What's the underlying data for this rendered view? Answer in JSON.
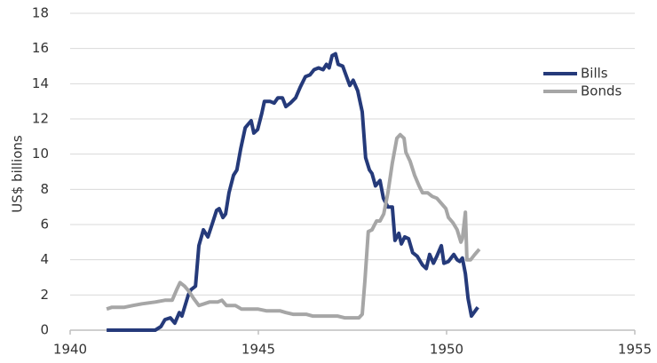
{
  "chart_data": {
    "type": "line",
    "ylabel": "US$ billions",
    "xlim": [
      1940,
      1955
    ],
    "xticks": [
      1940,
      1945,
      1950,
      1955
    ],
    "ylim": [
      0,
      18
    ],
    "yticks": [
      0,
      2,
      4,
      6,
      8,
      10,
      12,
      14,
      16,
      18
    ],
    "grid": true,
    "legend": "right",
    "series": [
      {
        "name": "Bills",
        "color": "#253a7a",
        "x": [
          1940.97,
          1942.26,
          1942.41,
          1942.52,
          1942.66,
          1942.78,
          1942.9,
          1942.97,
          1943.14,
          1943.21,
          1943.33,
          1943.42,
          1943.54,
          1943.66,
          1943.77,
          1943.89,
          1943.96,
          1944.06,
          1944.13,
          1944.22,
          1944.34,
          1944.43,
          1944.53,
          1944.65,
          1944.81,
          1944.88,
          1944.98,
          1945.09,
          1945.16,
          1945.31,
          1945.42,
          1945.52,
          1945.64,
          1945.73,
          1945.85,
          1945.99,
          1946.11,
          1946.25,
          1946.37,
          1946.48,
          1946.6,
          1946.72,
          1946.81,
          1946.88,
          1946.96,
          1947.05,
          1947.12,
          1947.24,
          1947.31,
          1947.43,
          1947.52,
          1947.64,
          1947.76,
          1947.85,
          1947.95,
          1948.02,
          1948.11,
          1948.23,
          1948.32,
          1948.44,
          1948.56,
          1948.63,
          1948.73,
          1948.8,
          1948.89,
          1948.99,
          1949.1,
          1949.22,
          1949.36,
          1949.46,
          1949.55,
          1949.65,
          1949.74,
          1949.86,
          1949.93,
          1950.05,
          1950.19,
          1950.28,
          1950.35,
          1950.42,
          1950.5,
          1950.57,
          1950.66,
          1950.83
        ],
        "values": [
          0,
          0,
          0.2,
          0.6,
          0.7,
          0.4,
          1.0,
          0.8,
          2.0,
          2.3,
          2.5,
          4.8,
          5.7,
          5.3,
          6.0,
          6.8,
          6.9,
          6.4,
          6.6,
          7.8,
          8.8,
          9.1,
          10.3,
          11.5,
          11.9,
          11.2,
          11.4,
          12.3,
          13.0,
          13.0,
          12.9,
          13.2,
          13.2,
          12.7,
          12.9,
          13.2,
          13.8,
          14.4,
          14.5,
          14.8,
          14.9,
          14.8,
          15.1,
          14.9,
          15.6,
          15.7,
          15.1,
          15.0,
          14.6,
          13.9,
          14.2,
          13.6,
          12.4,
          9.8,
          9.1,
          8.9,
          8.2,
          8.5,
          7.5,
          7.0,
          7.0,
          5.1,
          5.5,
          4.9,
          5.3,
          5.2,
          4.4,
          4.2,
          3.7,
          3.5,
          4.3,
          3.8,
          4.2,
          4.8,
          3.8,
          3.9,
          4.3,
          4.0,
          3.9,
          4.1,
          3.2,
          1.8,
          0.8,
          1.3
        ]
      },
      {
        "name": "Bonds",
        "color": "#a6a6a6",
        "x": [
          1940.97,
          1941.11,
          1941.44,
          1941.67,
          1941.91,
          1942.26,
          1942.52,
          1942.71,
          1942.83,
          1942.92,
          1943.04,
          1943.16,
          1943.28,
          1943.42,
          1943.56,
          1943.7,
          1943.92,
          1944.03,
          1944.15,
          1944.39,
          1944.55,
          1944.98,
          1945.21,
          1945.57,
          1945.73,
          1945.92,
          1946.27,
          1946.44,
          1947.1,
          1947.29,
          1947.67,
          1947.76,
          1947.83,
          1947.92,
          1948.02,
          1948.14,
          1948.23,
          1948.33,
          1948.44,
          1948.56,
          1948.68,
          1948.77,
          1948.87,
          1948.92,
          1949.03,
          1949.15,
          1949.27,
          1949.36,
          1949.5,
          1949.62,
          1949.74,
          1949.86,
          1949.98,
          1950.05,
          1950.17,
          1950.28,
          1950.38,
          1950.42,
          1950.5,
          1950.54,
          1950.64,
          1950.75,
          1950.87
        ],
        "values": [
          1.2,
          1.3,
          1.3,
          1.4,
          1.5,
          1.6,
          1.7,
          1.7,
          2.3,
          2.7,
          2.5,
          2.2,
          1.8,
          1.4,
          1.5,
          1.6,
          1.6,
          1.7,
          1.4,
          1.4,
          1.2,
          1.2,
          1.1,
          1.1,
          1.0,
          0.9,
          0.9,
          0.8,
          0.8,
          0.7,
          0.7,
          0.9,
          2.8,
          5.6,
          5.7,
          6.2,
          6.2,
          6.6,
          7.8,
          9.5,
          10.9,
          11.1,
          10.9,
          10.1,
          9.6,
          8.8,
          8.2,
          7.8,
          7.8,
          7.6,
          7.5,
          7.2,
          6.9,
          6.4,
          6.1,
          5.7,
          5.0,
          5.2,
          6.7,
          4.0,
          4.0,
          4.3,
          4.6
        ]
      }
    ]
  }
}
